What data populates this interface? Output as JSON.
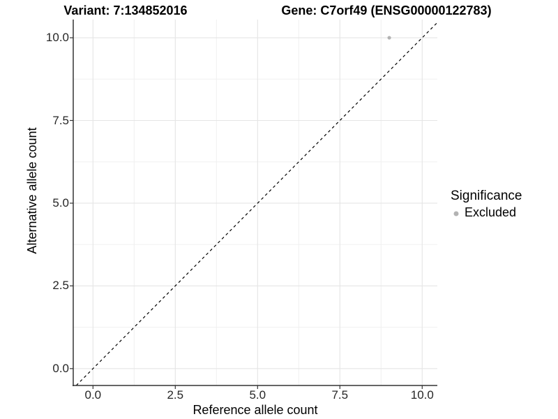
{
  "chart_data": {
    "type": "scatter",
    "title_left": "Variant: 7:134852016",
    "title_right": "Gene: C7orf49 (ENSG00000122783)",
    "xlabel": "Reference allele count",
    "ylabel": "Alternative allele count",
    "xlim": [
      -0.6,
      10.46
    ],
    "ylim": [
      -0.51,
      10.55
    ],
    "xticks": {
      "values": [
        0,
        2.5,
        5,
        7.5,
        10
      ],
      "labels": [
        "0.0",
        "2.5",
        "5.0",
        "7.5",
        "10.0"
      ]
    },
    "yticks": {
      "values": [
        0,
        2.5,
        5,
        7.5,
        10
      ],
      "labels": [
        "0.0",
        "2.5",
        "5.0",
        "7.5",
        "10.0"
      ]
    },
    "minor_xticks": [
      1.25,
      3.75,
      6.25,
      8.75
    ],
    "minor_yticks": [
      1.25,
      3.75,
      6.25,
      8.75
    ],
    "grid": true,
    "points": [
      {
        "x": 9,
        "y": 10,
        "series": "Excluded"
      }
    ],
    "reference_line": {
      "kind": "identity",
      "style": "dashed",
      "color": "#000000"
    },
    "legend": {
      "position": "right",
      "title": "Significance",
      "items": [
        {
          "label": "Excluded",
          "color": "#b3b3b3"
        }
      ]
    },
    "colors": {
      "point": "#b3b3b3",
      "grid_major": "#e5e5e5",
      "grid_minor": "#f0f0f0",
      "axis_line": "#333333",
      "tick_mark": "#333333"
    }
  }
}
